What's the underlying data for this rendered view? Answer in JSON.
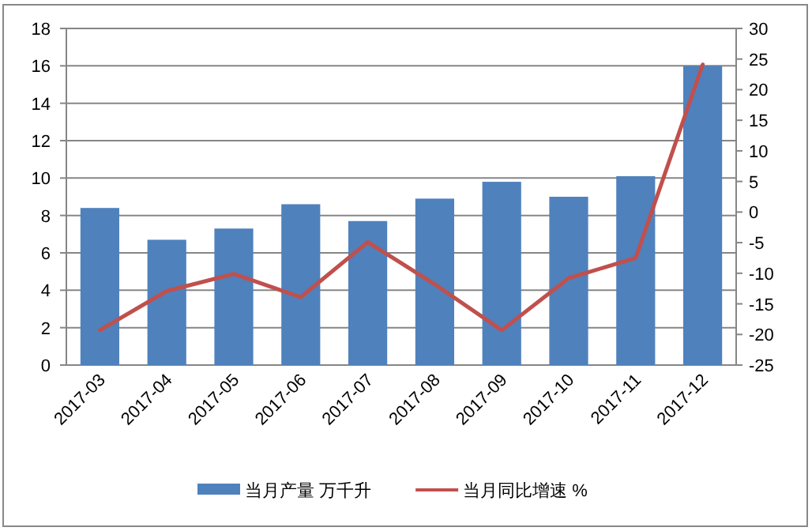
{
  "chart_data": {
    "type": "bar",
    "categories": [
      "2017-03",
      "2017-04",
      "2017-05",
      "2017-06",
      "2017-07",
      "2017-08",
      "2017-09",
      "2017-10",
      "2017-11",
      "2017-12"
    ],
    "series": [
      {
        "name": "当月产量 万千升",
        "color": "#4f81bd",
        "values": [
          8.4,
          6.7,
          7.3,
          8.6,
          7.7,
          8.9,
          9.8,
          9.0,
          10.1,
          16.0
        ]
      },
      {
        "name": "当月同比增速 %",
        "type": "line",
        "axis": "y2",
        "color": "#c0504d",
        "values": [
          -19.3,
          -12.9,
          -10.1,
          -13.9,
          -4.9,
          -11.8,
          -19.3,
          -10.8,
          -7.5,
          24.1
        ]
      }
    ],
    "ylim": [
      0,
      18
    ],
    "yticks": [
      0,
      2,
      4,
      6,
      8,
      10,
      12,
      14,
      16,
      18
    ],
    "y2lim": [
      -25,
      30
    ],
    "y2ticks": [
      -25,
      -20,
      -15,
      -10,
      -5,
      0,
      5,
      10,
      15,
      20,
      25,
      30
    ],
    "grid": "y",
    "legend": "bottom",
    "marker": "none",
    "line_style": "solid"
  }
}
